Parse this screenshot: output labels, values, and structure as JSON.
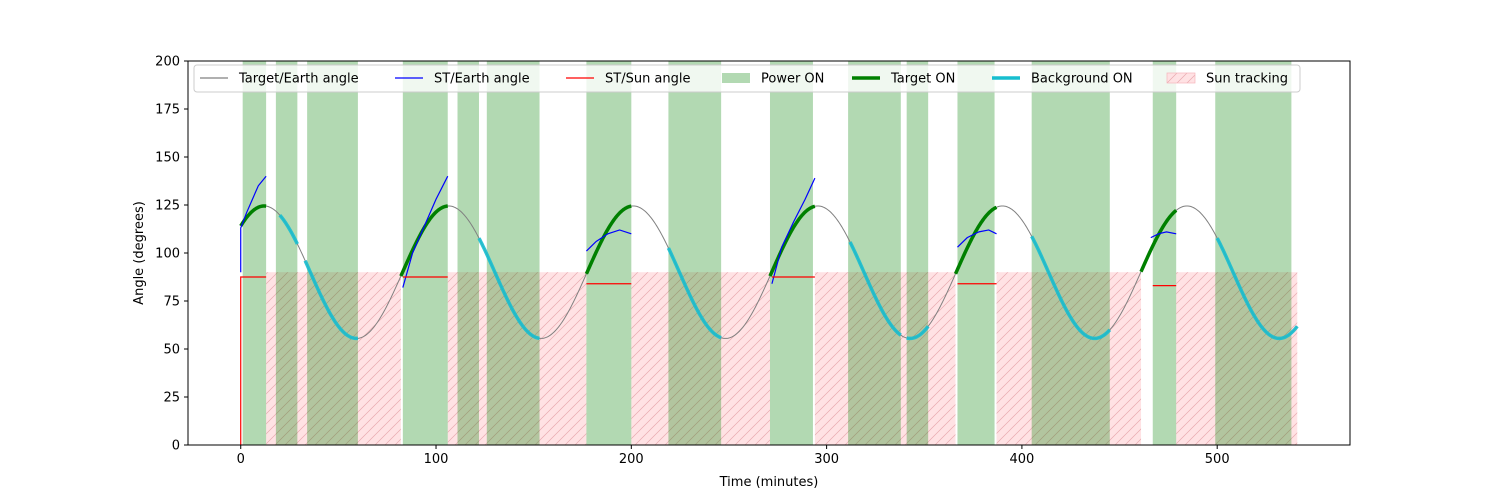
{
  "chart_data": {
    "type": "line",
    "xlabel": "Time (minutes)",
    "ylabel": "Angle (degrees)",
    "xlim": [
      -27,
      568
    ],
    "ylim": [
      0,
      200
    ],
    "xticks": [
      0,
      100,
      200,
      300,
      400,
      500
    ],
    "yticks": [
      0,
      25,
      50,
      75,
      100,
      125,
      150,
      175,
      200
    ],
    "grid": false,
    "legend_position": "top",
    "legend": [
      {
        "label": "Target/Earth angle",
        "kind": "line",
        "color": "#808080"
      },
      {
        "label": "ST/Earth angle",
        "kind": "line",
        "color": "#0000ff"
      },
      {
        "label": "ST/Sun angle",
        "kind": "line",
        "color": "#ff0000"
      },
      {
        "label": "Power ON",
        "kind": "patch",
        "color": "#b3d9b3"
      },
      {
        "label": "Target ON",
        "kind": "thickline",
        "color": "#008000"
      },
      {
        "label": "Background ON",
        "kind": "thickline",
        "color": "#17becf"
      },
      {
        "label": "Sun tracking",
        "kind": "hatch",
        "color": "#ffdfe2"
      }
    ],
    "target_earth_model": {
      "center": 90,
      "amplitude": 34.5,
      "period_min": 94.5,
      "peak_at_min": 12
    },
    "x_range": [
      0,
      541
    ],
    "power_on_intervals": [
      [
        1,
        13
      ],
      [
        18,
        29
      ],
      [
        34,
        60
      ],
      [
        83,
        106
      ],
      [
        111,
        122
      ],
      [
        126,
        153
      ],
      [
        177,
        200
      ],
      [
        219,
        246
      ],
      [
        271,
        293
      ],
      [
        311,
        338
      ],
      [
        341,
        352
      ],
      [
        367,
        386
      ],
      [
        405,
        445
      ],
      [
        467,
        479
      ],
      [
        499,
        538
      ]
    ],
    "target_on_intervals": [
      [
        0,
        13
      ],
      [
        82,
        106
      ],
      [
        177,
        200
      ],
      [
        271,
        294
      ],
      [
        366,
        387
      ],
      [
        461,
        479
      ]
    ],
    "background_on_intervals": [
      [
        20,
        29
      ],
      [
        33,
        60
      ],
      [
        122,
        153
      ],
      [
        219,
        246
      ],
      [
        312,
        338
      ],
      [
        341,
        352
      ],
      [
        405,
        445
      ],
      [
        500,
        541
      ]
    ],
    "sun_tracking": {
      "top": 90,
      "intervals": [
        [
          13,
          82
        ],
        [
          106,
          177
        ],
        [
          200,
          271
        ],
        [
          294,
          366
        ],
        [
          387,
          461
        ],
        [
          479,
          541
        ]
      ]
    },
    "st_sun_segments": [
      {
        "x": [
          0,
          0,
          13
        ],
        "y": [
          0,
          87.5,
          87.5
        ]
      },
      {
        "x": [
          83,
          106
        ],
        "y": [
          87.5,
          87.5
        ]
      },
      {
        "x": [
          177,
          200
        ],
        "y": [
          84,
          84
        ]
      },
      {
        "x": [
          272,
          294
        ],
        "y": [
          87.5,
          87.5
        ]
      },
      {
        "x": [
          367,
          387
        ],
        "y": [
          84,
          84
        ]
      },
      {
        "x": [
          467,
          479
        ],
        "y": [
          83,
          83
        ]
      }
    ],
    "st_earth_segments": [
      {
        "x": [
          0,
          0,
          3,
          6,
          9,
          13
        ],
        "y": [
          90,
          113,
          121,
          128,
          135,
          140
        ]
      },
      {
        "x": [
          83,
          88,
          94,
          100,
          106
        ],
        "y": [
          82,
          100,
          114,
          128,
          140
        ]
      },
      {
        "x": [
          177,
          182,
          188,
          194,
          200
        ],
        "y": [
          101,
          106,
          110,
          112,
          110
        ]
      },
      {
        "x": [
          272,
          277,
          283,
          289,
          294
        ],
        "y": [
          84,
          103,
          116,
          128,
          139
        ]
      },
      {
        "x": [
          367,
          372,
          378,
          383,
          387
        ],
        "y": [
          103,
          108,
          111,
          112,
          110
        ]
      },
      {
        "x": [
          466,
          470,
          474,
          479
        ],
        "y": [
          108,
          110,
          111,
          110
        ]
      }
    ]
  }
}
